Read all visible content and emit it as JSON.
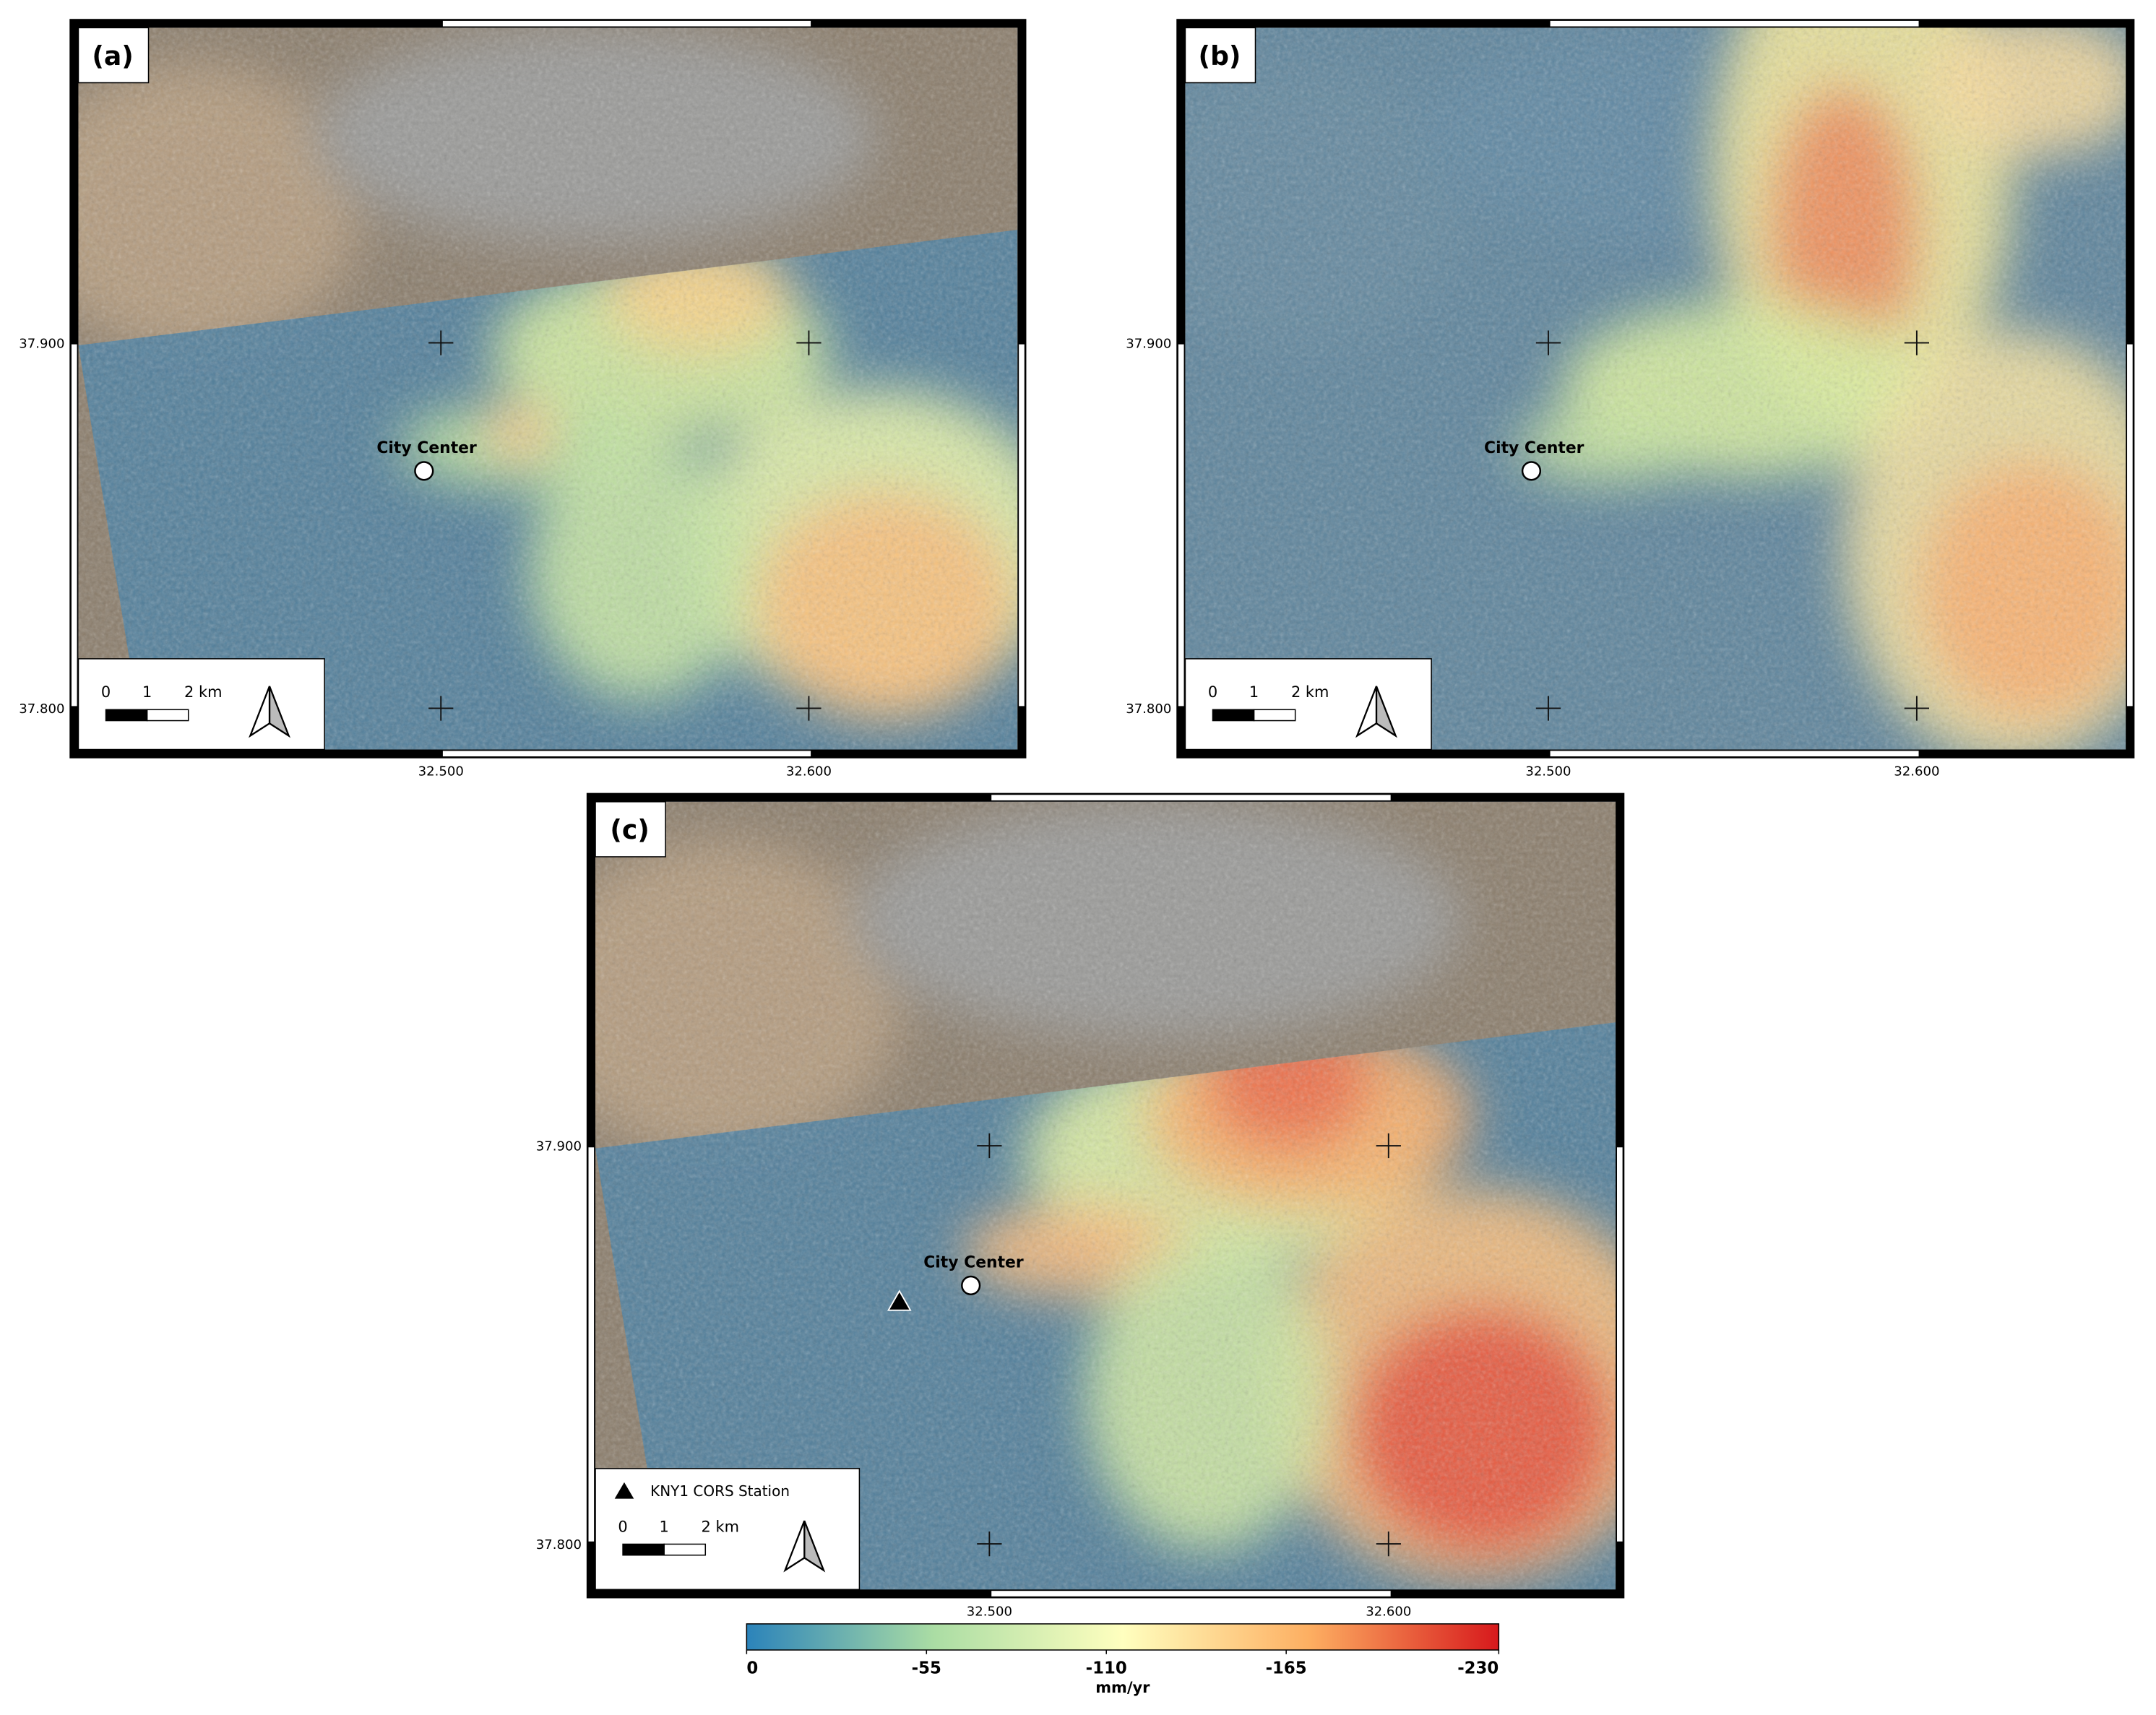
{
  "panels": [
    {
      "label": "(a)",
      "marker_label": "City Center",
      "scale": [
        "0",
        "1",
        "2 km"
      ],
      "xticks": [
        "32.500",
        "32.600"
      ],
      "yticks": [
        "37.900",
        "37.800"
      ]
    },
    {
      "label": "(b)",
      "marker_label": "City Center",
      "scale": [
        "0",
        "1",
        "2 km"
      ],
      "xticks": [
        "32.500",
        "32.600"
      ],
      "yticks": [
        "37.900",
        "37.800"
      ]
    },
    {
      "label": "(c)",
      "marker_label": "City Center",
      "station_label": "KNY1 CORS Station",
      "scale": [
        "0",
        "1",
        "2 km"
      ],
      "xticks": [
        "32.500",
        "32.600"
      ],
      "yticks": [
        "37.900",
        "37.800"
      ]
    }
  ],
  "colorbar": {
    "ticks": [
      0,
      -55,
      -110,
      -165,
      -230
    ],
    "unit": "mm/yr",
    "colors": [
      "#2b83ba",
      "#abdda4",
      "#ffffbf",
      "#fdae61",
      "#d7191c"
    ]
  }
}
